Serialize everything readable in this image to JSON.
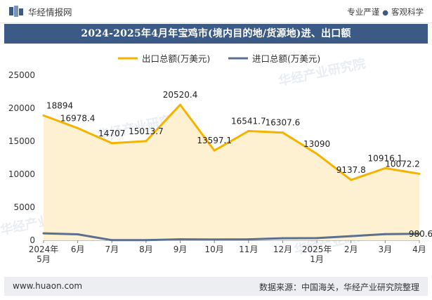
{
  "header": {
    "brand": "华经情报网",
    "tagline_left": "专业严谨",
    "tagline_right": "客观科学"
  },
  "chart_data": {
    "type": "line",
    "title": "2024-2025年4月年宝鸡市(境内目的地/货源地)进、出口额",
    "categories": [
      "2024年\n5月",
      "6月",
      "7月",
      "8月",
      "9月",
      "10月",
      "11月",
      "12月",
      "2025年\n1月",
      "2月",
      "3月",
      "4月"
    ],
    "series": [
      {
        "name": "出口总额(万美元)",
        "color": "#f5b300",
        "fill": "#fdf1d2",
        "values": [
          18894,
          16978.4,
          14707,
          15013.7,
          20520.4,
          13597.1,
          16541.7,
          16307.6,
          13090,
          9137.8,
          10916.1,
          10072.2
        ],
        "labels": [
          "18894",
          "16978.4",
          "14707",
          "15013.7",
          "20520.4",
          "13597.1",
          "16541.7",
          "16307.6",
          "13090",
          "9137.8",
          "10916.1",
          "10072.2"
        ]
      },
      {
        "name": "进口总额(万美元)",
        "color": "#5b6f8f",
        "values": [
          1050,
          900,
          20,
          30,
          150,
          120,
          150,
          300,
          330,
          620,
          930,
          980.6
        ],
        "labels": [
          "",
          "",
          "",
          "",
          "",
          "",
          "",
          "",
          "",
          "",
          "",
          "980.6"
        ]
      }
    ],
    "ylim": [
      0,
      25000
    ],
    "yticks": [
      0,
      5000,
      10000,
      15000,
      20000,
      25000
    ],
    "legend_position": "top-center",
    "grid": false
  },
  "footer": {
    "website": "www.huaon.com",
    "source": "数据来源：中国海关，华经产业研究院整理"
  },
  "watermark": "华经产业研究院"
}
